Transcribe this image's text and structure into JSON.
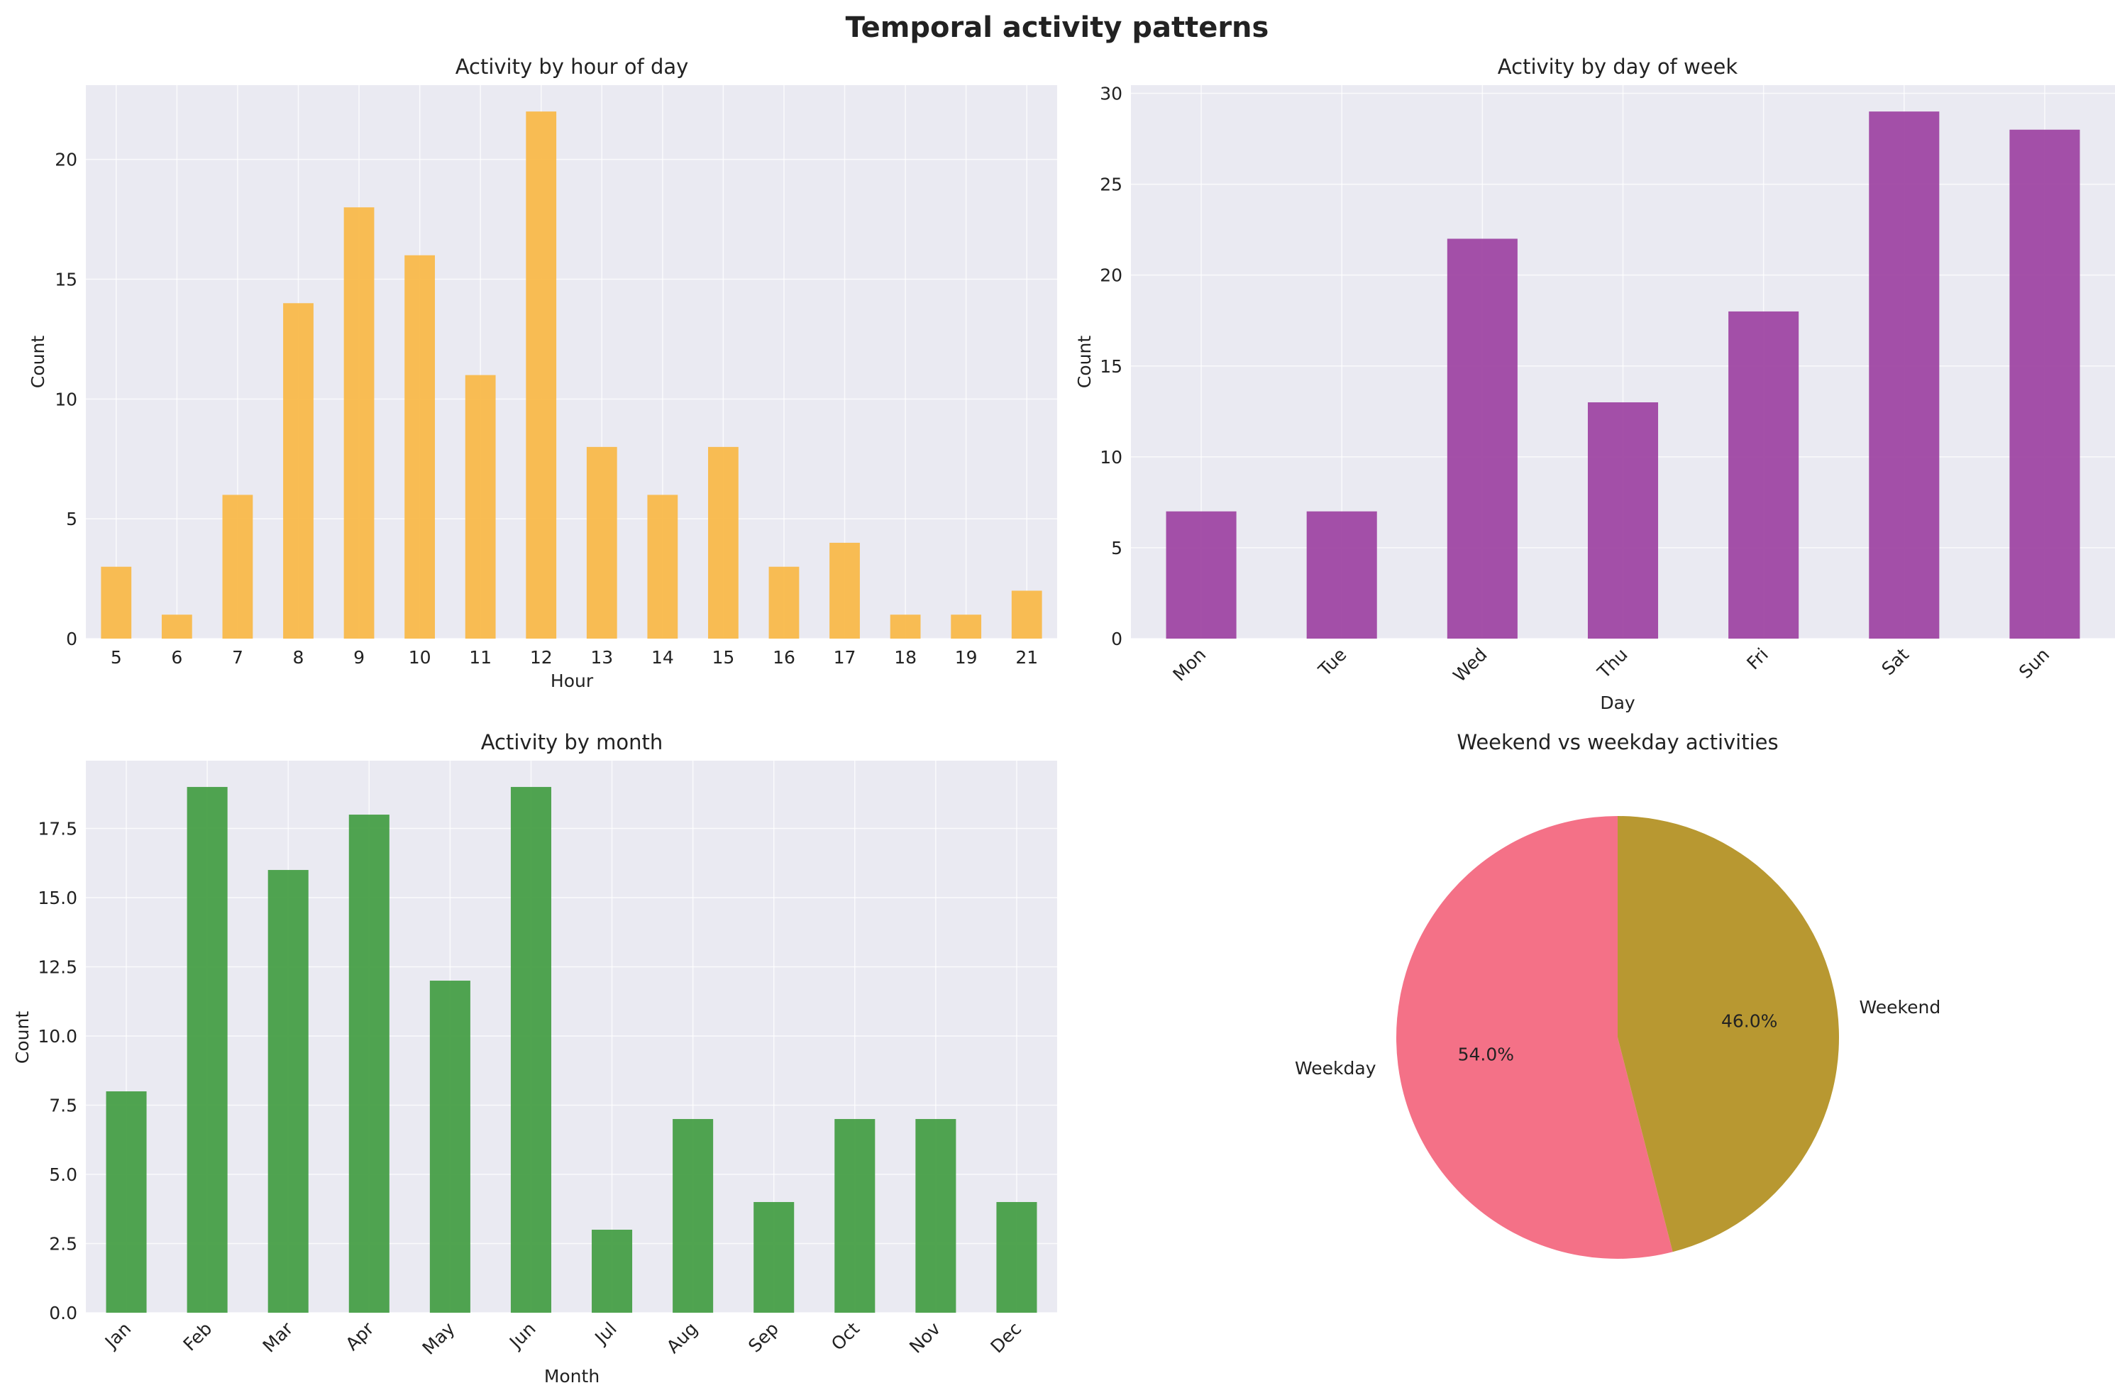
{
  "figure": {
    "suptitle": "Temporal activity patterns",
    "background": "#ffffff",
    "axes_background": "#eaeaf2",
    "grid_color": "#ffffff"
  },
  "chart_data": [
    {
      "type": "bar",
      "title": "Activity by hour of day",
      "xlabel": "Hour",
      "ylabel": "Count",
      "categories": [
        "5",
        "6",
        "7",
        "8",
        "9",
        "10",
        "11",
        "12",
        "13",
        "14",
        "15",
        "16",
        "17",
        "18",
        "19",
        "21"
      ],
      "values": [
        3,
        1,
        6,
        14,
        18,
        16,
        11,
        22,
        8,
        6,
        8,
        3,
        4,
        1,
        1,
        2
      ],
      "ylim": [
        0,
        23.1
      ],
      "yticks": [
        0,
        5,
        10,
        15,
        20
      ],
      "ytick_labels": [
        "0",
        "5",
        "10",
        "15",
        "20"
      ],
      "xtick_rotation": 0,
      "color": "#f9b94a",
      "grid": true
    },
    {
      "type": "bar",
      "title": "Activity by day of week",
      "xlabel": "Day",
      "ylabel": "Count",
      "categories": [
        "Mon",
        "Tue",
        "Wed",
        "Thu",
        "Fri",
        "Sat",
        "Sun"
      ],
      "values": [
        7,
        7,
        22,
        13,
        18,
        29,
        28
      ],
      "ylim": [
        0,
        30.45
      ],
      "yticks": [
        0,
        5,
        10,
        15,
        20,
        25,
        30
      ],
      "ytick_labels": [
        "0",
        "5",
        "10",
        "15",
        "20",
        "25",
        "30"
      ],
      "xtick_rotation": 45,
      "color": "#9f47a3",
      "grid": true
    },
    {
      "type": "bar",
      "title": "Activity by month",
      "xlabel": "Month",
      "ylabel": "Count",
      "categories": [
        "Jan",
        "Feb",
        "Mar",
        "Apr",
        "May",
        "Jun",
        "Jul",
        "Aug",
        "Sep",
        "Oct",
        "Nov",
        "Dec"
      ],
      "values": [
        8,
        19,
        16,
        18,
        12,
        19,
        3,
        7,
        4,
        7,
        7,
        4
      ],
      "ylim": [
        0,
        19.95
      ],
      "yticks": [
        0,
        2.5,
        5,
        7.5,
        10,
        12.5,
        15,
        17.5
      ],
      "ytick_labels": [
        "0.0",
        "2.5",
        "5.0",
        "7.5",
        "10.0",
        "12.5",
        "15.0",
        "17.5"
      ],
      "xtick_rotation": 45,
      "color": "#479f47",
      "grid": true
    },
    {
      "type": "pie",
      "title": "Weekend vs weekday activities",
      "labels": [
        "Weekday",
        "Weekend"
      ],
      "values": [
        54.0,
        46.0
      ],
      "pct_labels": [
        "54.0%",
        "46.0%"
      ],
      "colors": [
        "#f47187",
        "#b89831"
      ],
      "startangle": 90,
      "direction": "counterclockwise"
    }
  ]
}
